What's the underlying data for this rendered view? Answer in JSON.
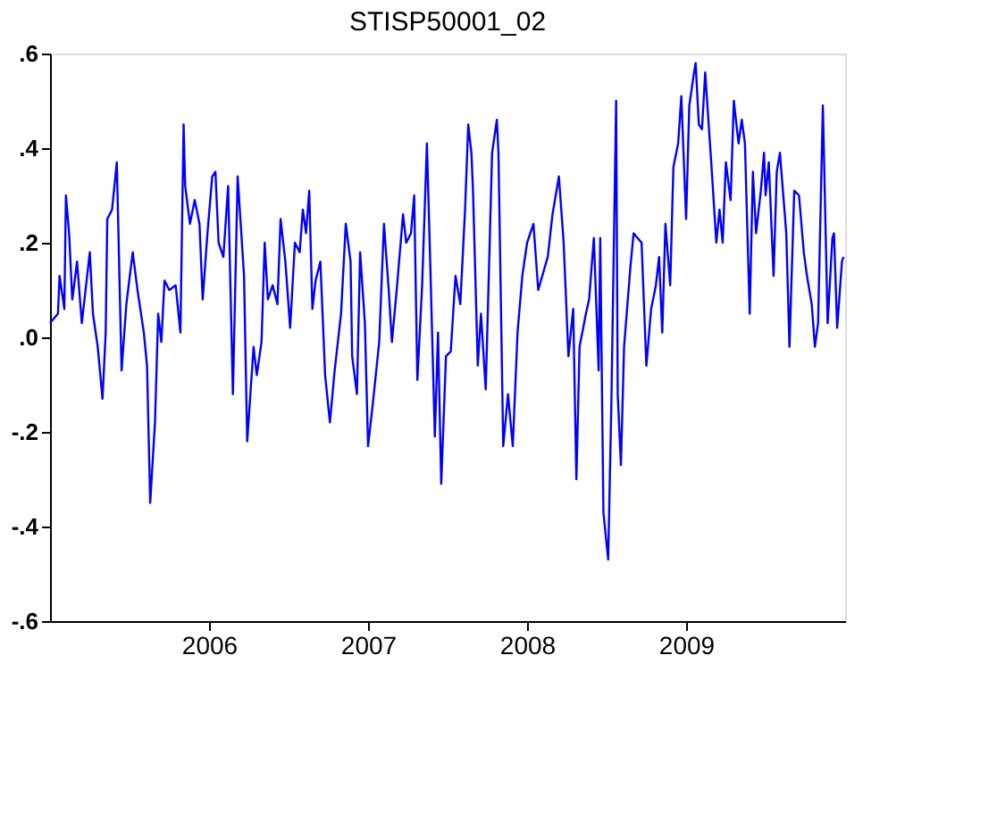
{
  "chart_data": {
    "type": "line",
    "title": "STISP50001_02",
    "xlim": [
      2005,
      2010
    ],
    "xticks": [
      2006,
      2007,
      2008,
      2009
    ],
    "ylim": [
      -0.6,
      0.6
    ],
    "yticks": [
      {
        "value": -0.6,
        "label": "-.6"
      },
      {
        "value": -0.4,
        "label": "-.4"
      },
      {
        "value": -0.2,
        "label": "-.2"
      },
      {
        "value": 0,
        "label": ".0"
      },
      {
        "value": 0.2,
        "label": ".2"
      },
      {
        "value": 0.4,
        "label": ".4"
      },
      {
        "value": 0.6,
        "label": ".6"
      }
    ],
    "grid": false,
    "legend": false,
    "marker": "none",
    "line_style": "solid",
    "series": [
      {
        "color": "#0000ff",
        "x": [
          2005.0,
          2005.05,
          2005.06,
          2005.09,
          2005.1,
          2005.12,
          2005.14,
          2005.17,
          2005.2,
          2005.23,
          2005.25,
          2005.27,
          2005.3,
          2005.33,
          2005.35,
          2005.36,
          2005.39,
          2005.42,
          2005.45,
          2005.48,
          2005.52,
          2005.55,
          2005.59,
          2005.61,
          2005.63,
          2005.66,
          2005.68,
          2005.7,
          2005.72,
          2005.75,
          2005.79,
          2005.82,
          2005.84,
          2005.85,
          2005.88,
          2005.91,
          2005.94,
          2005.96,
          2005.99,
          2006.02,
          2006.04,
          2006.06,
          2006.09,
          2006.12,
          2006.15,
          2006.18,
          2006.22,
          2006.24,
          2006.26,
          2006.28,
          2006.3,
          2006.33,
          2006.35,
          2006.37,
          2006.4,
          2006.43,
          2006.45,
          2006.48,
          2006.51,
          2006.54,
          2006.57,
          2006.59,
          2006.61,
          2006.63,
          2006.65,
          2006.67,
          2006.7,
          2006.73,
          2006.76,
          2006.79,
          2006.83,
          2006.86,
          2006.89,
          2006.9,
          2006.93,
          2006.95,
          2006.98,
          2007.0,
          2007.03,
          2007.07,
          2007.1,
          2007.13,
          2007.15,
          2007.18,
          2007.22,
          2007.24,
          2007.27,
          2007.29,
          2007.31,
          2007.34,
          2007.37,
          2007.39,
          2007.42,
          2007.44,
          2007.46,
          2007.49,
          2007.52,
          2007.55,
          2007.58,
          2007.61,
          2007.63,
          2007.65,
          2007.66,
          2007.69,
          2007.71,
          2007.74,
          2007.78,
          2007.81,
          2007.82,
          2007.85,
          2007.88,
          2007.91,
          2007.94,
          2007.97,
          2008.0,
          2008.04,
          2008.07,
          2008.13,
          2008.16,
          2008.2,
          2008.23,
          2008.26,
          2008.29,
          2008.31,
          2008.33,
          2008.37,
          2008.39,
          2008.42,
          2008.45,
          2008.46,
          2008.48,
          2008.51,
          2008.53,
          2008.56,
          2008.57,
          2008.59,
          2008.61,
          2008.65,
          2008.67,
          2008.72,
          2008.75,
          2008.78,
          2008.81,
          2008.83,
          2008.85,
          2008.87,
          2008.9,
          2008.92,
          2008.95,
          2008.97,
          2009.0,
          2009.02,
          2009.05,
          2009.06,
          2009.08,
          2009.1,
          2009.12,
          2009.14,
          2009.16,
          2009.19,
          2009.21,
          2009.23,
          2009.25,
          2009.28,
          2009.3,
          2009.33,
          2009.35,
          2009.37,
          2009.4,
          2009.42,
          2009.44,
          2009.47,
          2009.49,
          2009.5,
          2009.52,
          2009.55,
          2009.57,
          2009.59,
          2009.63,
          2009.65,
          2009.68,
          2009.71,
          2009.74,
          2009.76,
          2009.79,
          2009.81,
          2009.83,
          2009.86,
          2009.89,
          2009.92,
          2009.93,
          2009.95,
          2009.98,
          2009.99
        ],
        "values": [
          0.03,
          0.05,
          0.13,
          0.06,
          0.3,
          0.22,
          0.08,
          0.16,
          0.03,
          0.12,
          0.18,
          0.05,
          -0.02,
          -0.13,
          0.01,
          0.25,
          0.27,
          0.37,
          -0.07,
          0.07,
          0.18,
          0.1,
          0.01,
          -0.06,
          -0.35,
          -0.18,
          0.05,
          -0.01,
          0.12,
          0.1,
          0.11,
          0.01,
          0.45,
          0.32,
          0.24,
          0.29,
          0.24,
          0.08,
          0.22,
          0.34,
          0.35,
          0.2,
          0.17,
          0.32,
          -0.12,
          0.34,
          0.13,
          -0.22,
          -0.12,
          -0.02,
          -0.08,
          -0.01,
          0.2,
          0.08,
          0.11,
          0.07,
          0.25,
          0.16,
          0.02,
          0.2,
          0.18,
          0.27,
          0.22,
          0.31,
          0.06,
          0.12,
          0.16,
          -0.08,
          -0.18,
          -0.07,
          0.05,
          0.24,
          0.16,
          -0.04,
          -0.12,
          0.18,
          0.03,
          -0.23,
          -0.14,
          -0.01,
          0.24,
          0.1,
          -0.01,
          0.1,
          0.26,
          0.2,
          0.22,
          0.3,
          -0.09,
          0.11,
          0.41,
          0.17,
          -0.21,
          0.01,
          -0.31,
          -0.04,
          -0.03,
          0.13,
          0.07,
          0.27,
          0.45,
          0.39,
          0.31,
          -0.06,
          0.05,
          -0.11,
          0.39,
          0.46,
          0.39,
          -0.23,
          -0.12,
          -0.23,
          0.01,
          0.13,
          0.2,
          0.24,
          0.1,
          0.17,
          0.26,
          0.34,
          0.2,
          -0.04,
          0.06,
          -0.3,
          -0.02,
          0.05,
          0.08,
          0.21,
          -0.07,
          0.21,
          -0.37,
          -0.47,
          -0.14,
          0.5,
          -0.12,
          -0.27,
          -0.02,
          0.15,
          0.22,
          0.2,
          -0.06,
          0.06,
          0.11,
          0.17,
          0.01,
          0.24,
          0.11,
          0.36,
          0.41,
          0.51,
          0.25,
          0.49,
          0.56,
          0.58,
          0.45,
          0.44,
          0.56,
          0.46,
          0.36,
          0.2,
          0.27,
          0.2,
          0.37,
          0.29,
          0.5,
          0.41,
          0.46,
          0.41,
          0.05,
          0.35,
          0.22,
          0.31,
          0.39,
          0.3,
          0.37,
          0.13,
          0.35,
          0.39,
          0.22,
          -0.02,
          0.31,
          0.3,
          0.18,
          0.13,
          0.07,
          -0.02,
          0.03,
          0.49,
          0.03,
          0.21,
          0.22,
          0.02,
          0.16,
          0.17
        ]
      }
    ]
  }
}
